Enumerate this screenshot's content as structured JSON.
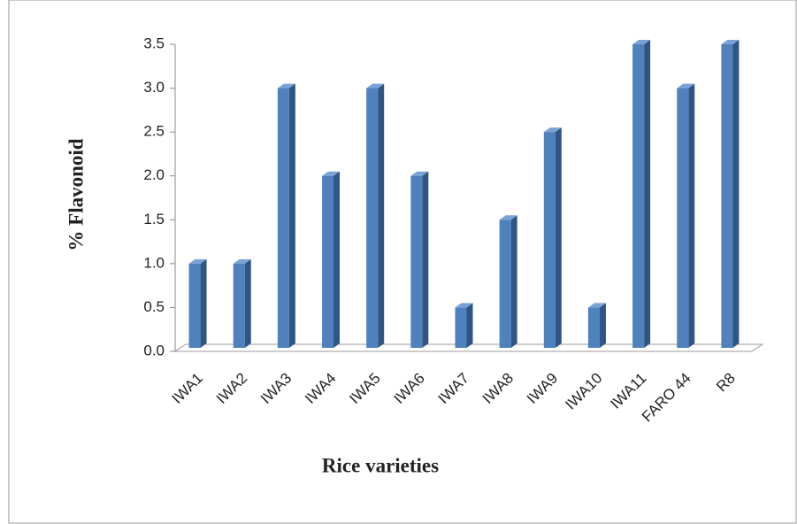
{
  "chart_data": {
    "type": "bar",
    "x_label": "Rice varieties",
    "y_label": "% Flavonoid",
    "categories": [
      "IWA1",
      "IWA2",
      "IWA3",
      "IWA4",
      "IWA5",
      "IWA6",
      "IWA7",
      "IWA8",
      "IWA9",
      "IWA10",
      "IWA11",
      "FARO 44",
      "R8"
    ],
    "values": [
      1.0,
      1.0,
      3.0,
      2.0,
      3.0,
      2.0,
      0.5,
      1.5,
      2.5,
      0.5,
      3.5,
      3.0,
      3.5
    ],
    "color": "#4f81bd",
    "ylim": [
      0,
      3.5
    ],
    "yticks": [
      {
        "value": 0,
        "label": "0.0"
      },
      0.5,
      {
        "value": 1,
        "label": "1.0"
      },
      1.5,
      {
        "value": 2,
        "label": "2.0"
      },
      2.5,
      {
        "value": 3,
        "label": "3.0"
      },
      3.5
    ],
    "grid": false
  }
}
